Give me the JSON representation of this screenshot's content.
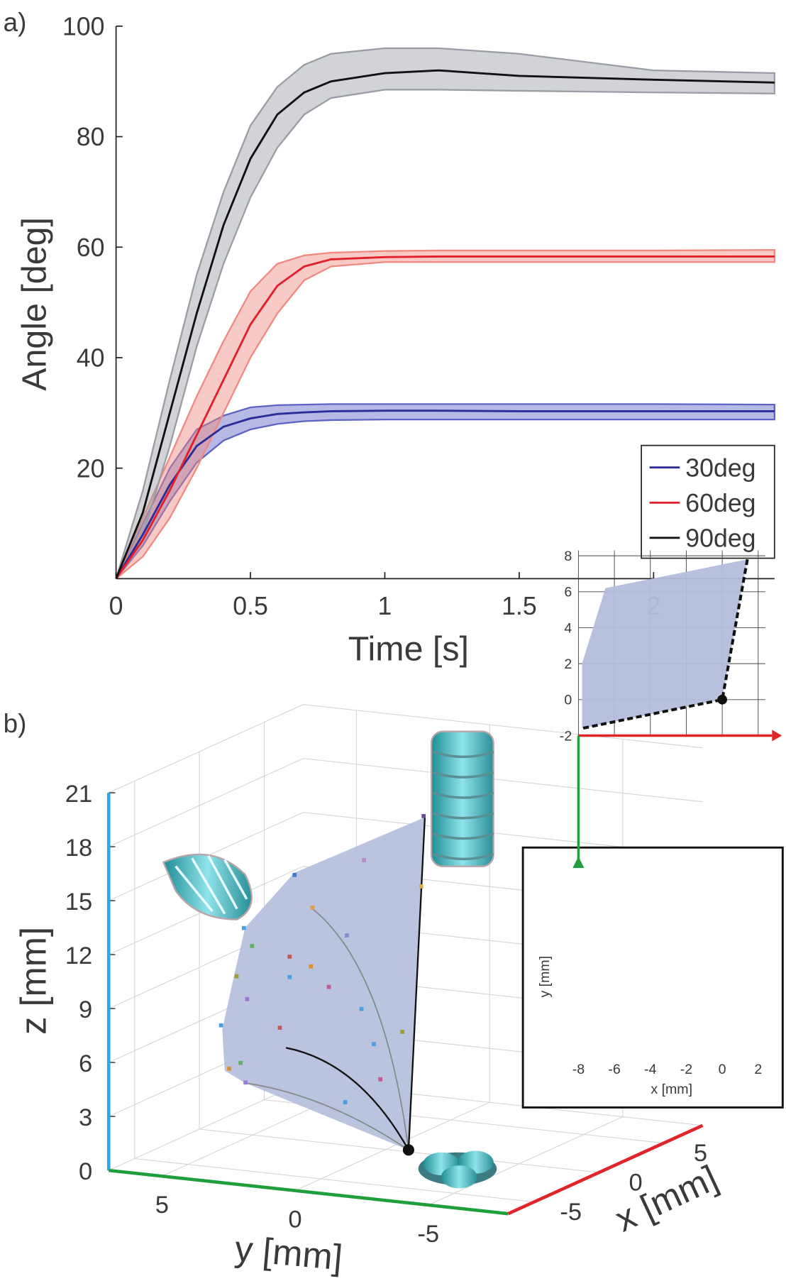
{
  "chart_data": [
    {
      "type": "line",
      "panel_label": "a)",
      "xlabel": "Time [s]",
      "ylabel": "Angle [deg]",
      "x": [
        0,
        0.1,
        0.2,
        0.3,
        0.4,
        0.5,
        0.6,
        0.7,
        0.8,
        1.0,
        1.2,
        1.5,
        2.0,
        2.45
      ],
      "xlim": [
        0,
        2.45
      ],
      "xticks": [
        0,
        0.5,
        1,
        1.5,
        2
      ],
      "ylim": [
        0,
        100
      ],
      "yticks": [
        20,
        40,
        60,
        80,
        100
      ],
      "legend": "lower right",
      "series": [
        {
          "name": "30deg",
          "color": "#2b2b9a",
          "band_color": "#5d63c4",
          "values": [
            0,
            8,
            17,
            24,
            27.5,
            29,
            29.8,
            30.1,
            30.3,
            30.4,
            30.4,
            30.3,
            30.3,
            30.3
          ],
          "lower": [
            0,
            6,
            14,
            21,
            25,
            27,
            28,
            28.5,
            28.7,
            28.8,
            28.8,
            28.8,
            28.8,
            28.8
          ],
          "upper": [
            0,
            10,
            20,
            27,
            29.5,
            31,
            31.4,
            31.5,
            31.6,
            31.6,
            31.6,
            31.6,
            31.6,
            31.5
          ]
        },
        {
          "name": "60deg",
          "color": "#e0202a",
          "band_color": "#f08a80",
          "values": [
            0,
            7,
            16,
            26,
            36,
            46,
            53,
            56.5,
            57.8,
            58.2,
            58.3,
            58.3,
            58.3,
            58.3
          ],
          "lower": [
            0,
            4,
            11,
            20,
            30,
            40,
            48,
            54,
            56.5,
            57.3,
            57.3,
            57.3,
            57.3,
            57.3
          ],
          "upper": [
            0,
            11,
            22,
            33,
            43,
            52,
            57,
            58.5,
            59,
            59.3,
            59.4,
            59.4,
            59.4,
            59.5
          ]
        },
        {
          "name": "90deg",
          "color": "#111111",
          "band_color": "#9a9ea4",
          "values": [
            0,
            12,
            30,
            48,
            64,
            76,
            84,
            88,
            90,
            91.5,
            92,
            91,
            90.3,
            89.8
          ],
          "lower": [
            0,
            8,
            24,
            42,
            57,
            69,
            78,
            84,
            87,
            88.5,
            88.5,
            88.3,
            88,
            87.8
          ],
          "upper": [
            0,
            16,
            36,
            55,
            70,
            82,
            89,
            93,
            95,
            96,
            96,
            95,
            92,
            91.5
          ]
        }
      ]
    },
    {
      "type": "surface3d",
      "panel_label": "b)",
      "xlabel": "x [mm]",
      "ylabel": "y [mm]",
      "zlabel": "z [mm]",
      "xlim": [
        -7,
        8
      ],
      "xticks": [
        -5,
        0,
        5
      ],
      "ylim": [
        7,
        -8
      ],
      "yticks": [
        5,
        0,
        -5
      ],
      "zlim": [
        0,
        21
      ],
      "zticks": [
        0,
        3,
        6,
        9,
        12,
        15,
        18,
        21
      ],
      "axis_colors": {
        "x": "#e0242a",
        "y": "#1f9e3c",
        "z": "#29abe2"
      },
      "inset": {
        "xlabel": "x [mm]",
        "ylabel": "y [mm]",
        "xlim": [
          -8,
          2.4
        ],
        "xticks": [
          -8,
          -6,
          -4,
          -2,
          0,
          2
        ],
        "ylim": [
          -2,
          8.3
        ],
        "yticks": [
          -2,
          0,
          2,
          4,
          6,
          8
        ]
      }
    }
  ]
}
